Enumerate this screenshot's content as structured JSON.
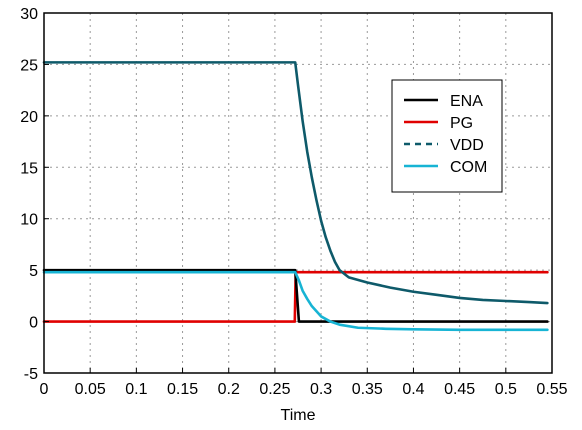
{
  "chart_data": {
    "type": "line",
    "title": "",
    "xlabel": "Time",
    "ylabel": "",
    "xlim": [
      0,
      0.55
    ],
    "ylim": [
      -5,
      30
    ],
    "x_ticks": [
      "0",
      "0.05",
      "0.1",
      "0.15",
      "0.2",
      "0.25",
      "0.3",
      "0.35",
      "0.4",
      "0.45",
      "0.5",
      "0.55"
    ],
    "y_ticks": [
      "-5",
      "0",
      "5",
      "10",
      "15",
      "20",
      "25",
      "30"
    ],
    "grid": true,
    "legend_position": "top-right",
    "series": [
      {
        "name": "ENA",
        "color": "#000000",
        "style": "solid",
        "points": [
          [
            0,
            5.0
          ],
          [
            0.272,
            5.0
          ],
          [
            0.276,
            0.0
          ],
          [
            0.545,
            0.0
          ]
        ]
      },
      {
        "name": "PG",
        "color": "#e00000",
        "style": "solid",
        "points": [
          [
            0,
            0.0
          ],
          [
            0.2715,
            0.0
          ],
          [
            0.2725,
            4.8
          ],
          [
            0.545,
            4.8
          ]
        ]
      },
      {
        "name": "VDD",
        "color": "#0e5a6a",
        "style": "dashed",
        "points": [
          [
            0,
            25.2
          ],
          [
            0.272,
            25.2
          ],
          [
            0.275,
            23.0
          ],
          [
            0.28,
            19.5
          ],
          [
            0.285,
            16.5
          ],
          [
            0.29,
            14.0
          ],
          [
            0.295,
            11.8
          ],
          [
            0.3,
            9.8
          ],
          [
            0.305,
            8.2
          ],
          [
            0.31,
            6.9
          ],
          [
            0.315,
            5.8
          ],
          [
            0.32,
            5.0
          ],
          [
            0.33,
            4.3
          ],
          [
            0.35,
            3.8
          ],
          [
            0.375,
            3.3
          ],
          [
            0.4,
            2.9
          ],
          [
            0.425,
            2.6
          ],
          [
            0.45,
            2.3
          ],
          [
            0.475,
            2.1
          ],
          [
            0.5,
            2.0
          ],
          [
            0.525,
            1.9
          ],
          [
            0.545,
            1.8
          ]
        ]
      },
      {
        "name": "COM",
        "color": "#17b4d4",
        "style": "solid",
        "points": [
          [
            0,
            4.8
          ],
          [
            0.272,
            4.8
          ],
          [
            0.276,
            4.0
          ],
          [
            0.28,
            3.0
          ],
          [
            0.285,
            2.2
          ],
          [
            0.29,
            1.5
          ],
          [
            0.295,
            1.0
          ],
          [
            0.3,
            0.5
          ],
          [
            0.31,
            0.0
          ],
          [
            0.32,
            -0.3
          ],
          [
            0.34,
            -0.6
          ],
          [
            0.37,
            -0.7
          ],
          [
            0.4,
            -0.75
          ],
          [
            0.45,
            -0.8
          ],
          [
            0.5,
            -0.8
          ],
          [
            0.545,
            -0.8
          ]
        ]
      }
    ]
  }
}
